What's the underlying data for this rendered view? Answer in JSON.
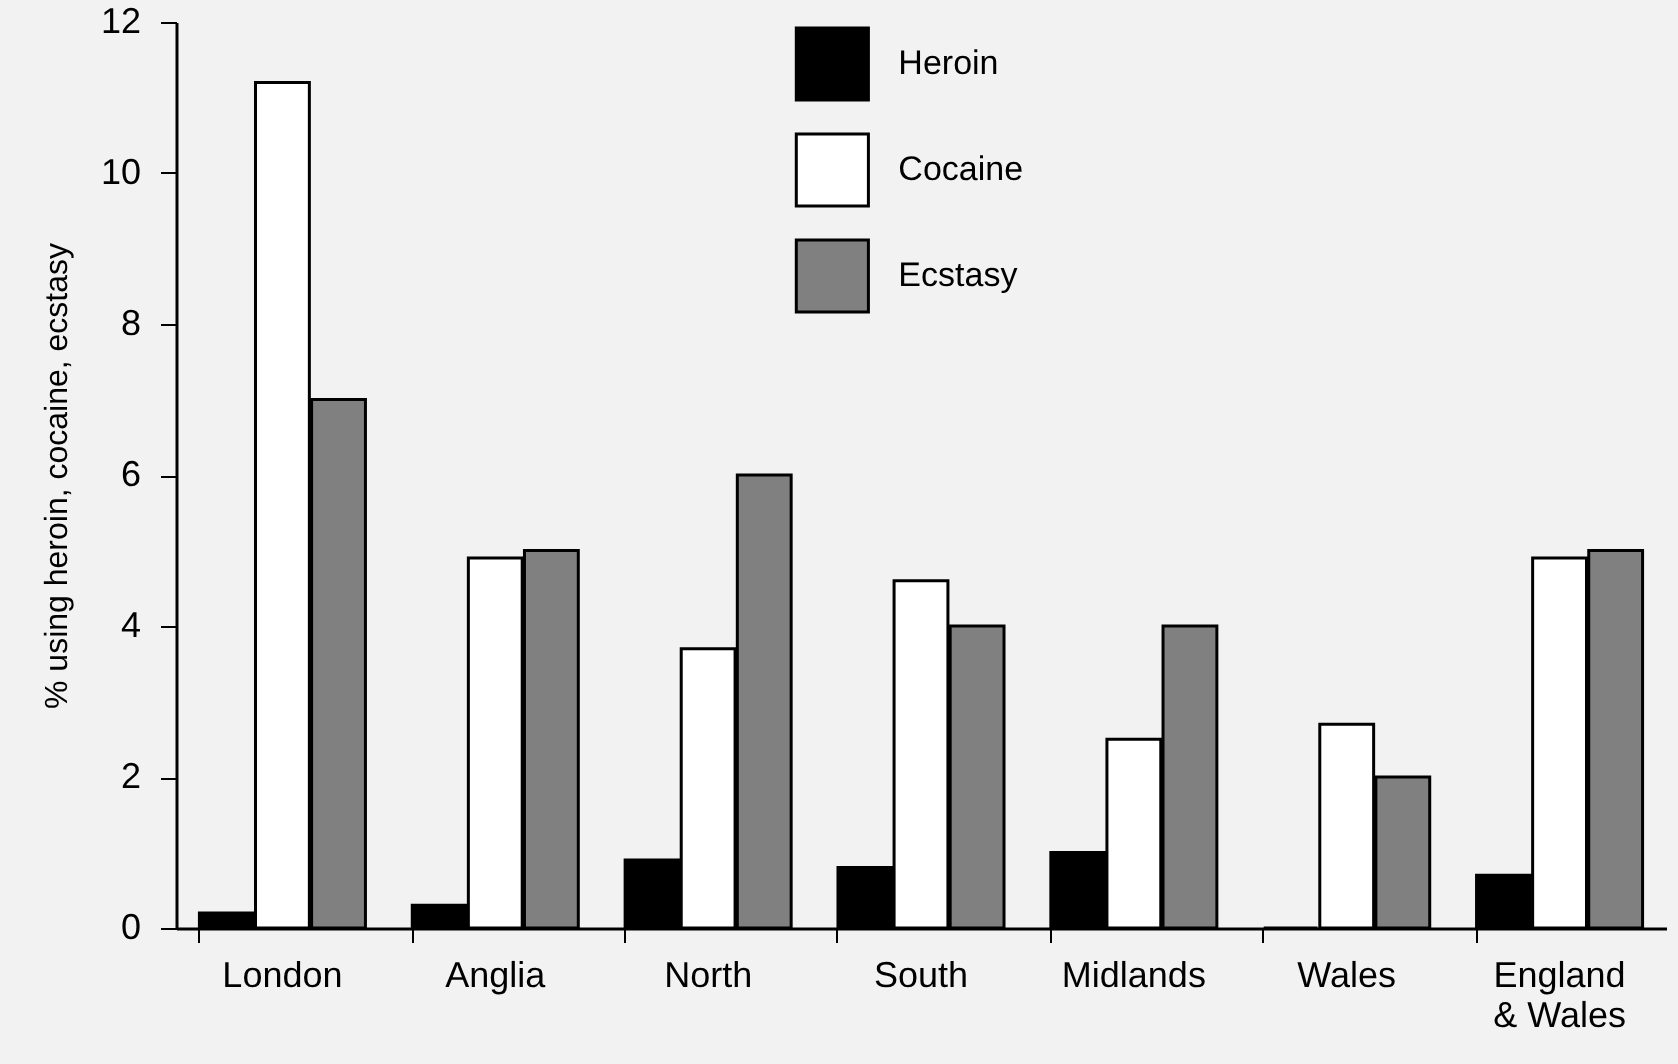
{
  "chart_data": {
    "type": "bar",
    "ylabel": "% using heroin, cocaine, ecstasy",
    "categories": [
      "London",
      "Anglia",
      "North",
      "South",
      "Midlands",
      "Wales",
      "England\n& Wales"
    ],
    "series": [
      {
        "name": "Heroin",
        "color": "#000000",
        "values": [
          0.2,
          0.3,
          0.9,
          0.8,
          1.0,
          0,
          0.7
        ]
      },
      {
        "name": "Cocaine",
        "color": "#ffffff",
        "values": [
          11.2,
          4.9,
          3.7,
          4.6,
          2.5,
          2.7,
          4.9
        ]
      },
      {
        "name": "Ecstasy",
        "color": "#808080",
        "values": [
          7.0,
          5.0,
          6.0,
          4.0,
          4.0,
          2.0,
          5.0
        ]
      }
    ],
    "ylim": [
      0,
      12
    ],
    "yticks": [
      0,
      2,
      4,
      6,
      8,
      10,
      12
    ],
    "grid": false,
    "legend": "top"
  }
}
